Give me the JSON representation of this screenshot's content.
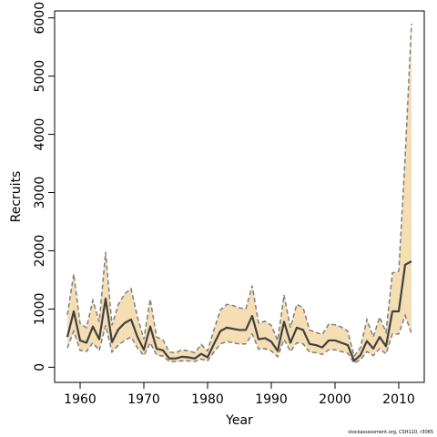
{
  "chart_data": {
    "type": "line",
    "xlabel": "Year",
    "ylabel": "Recruits",
    "xlim": [
      1956,
      2014
    ],
    "ylim": [
      -260,
      6120
    ],
    "x_ticks": [
      1960,
      1970,
      1980,
      1990,
      2000,
      2010
    ],
    "y_ticks": [
      0,
      1000,
      2000,
      3000,
      4000,
      5000,
      6000
    ],
    "grid": false,
    "legend": "none",
    "colors": {
      "band": "#f5deb3",
      "bound_line": "#7f7f7f",
      "median_line": "#404040"
    },
    "credit": "stockassessment.org, CSH110, r3065",
    "series": [
      {
        "x": [
          1958,
          1959,
          1960,
          1961,
          1962,
          1963,
          1964,
          1965,
          1966,
          1967,
          1968,
          1969,
          1970,
          1971,
          1972,
          1973,
          1974,
          1975,
          1976,
          1977,
          1978,
          1979,
          1980,
          1981,
          1982,
          1983,
          1984,
          1985,
          1986,
          1987,
          1988,
          1989,
          1990,
          1991,
          1992,
          1993,
          1994,
          1995,
          1996,
          1997,
          1998,
          1999,
          2000,
          2001,
          2002,
          2003,
          2004,
          2005,
          2006,
          2007,
          2008,
          2009,
          2010,
          2011,
          2012
        ],
        "median": [
          520,
          960,
          460,
          420,
          700,
          480,
          1180,
          430,
          650,
          760,
          820,
          520,
          300,
          700,
          320,
          290,
          150,
          150,
          180,
          170,
          150,
          230,
          170,
          400,
          620,
          680,
          660,
          640,
          640,
          880,
          480,
          500,
          440,
          280,
          780,
          420,
          680,
          640,
          400,
          380,
          340,
          460,
          460,
          420,
          380,
          110,
          210,
          450,
          320,
          520,
          360,
          960,
          960,
          1760,
          1820
        ],
        "lower": [
          330,
          620,
          290,
          270,
          420,
          290,
          720,
          260,
          380,
          460,
          520,
          330,
          200,
          420,
          210,
          190,
          100,
          100,
          110,
          110,
          100,
          140,
          110,
          260,
          400,
          440,
          420,
          400,
          400,
          570,
          310,
          320,
          280,
          180,
          480,
          270,
          420,
          400,
          260,
          250,
          220,
          300,
          300,
          270,
          240,
          70,
          130,
          270,
          200,
          320,
          230,
          570,
          570,
          890,
          580
        ],
        "upper": [
          900,
          1600,
          750,
          680,
          1150,
          780,
          1980,
          720,
          1080,
          1260,
          1350,
          860,
          480,
          1170,
          520,
          470,
          260,
          250,
          300,
          280,
          250,
          390,
          280,
          640,
          980,
          1080,
          1060,
          1020,
          1000,
          1400,
          760,
          790,
          720,
          460,
          1240,
          680,
          1080,
          1020,
          640,
          600,
          560,
          740,
          730,
          690,
          620,
          190,
          340,
          820,
          520,
          860,
          600,
          1620,
          1650,
          3600,
          5900
        ]
      }
    ]
  }
}
